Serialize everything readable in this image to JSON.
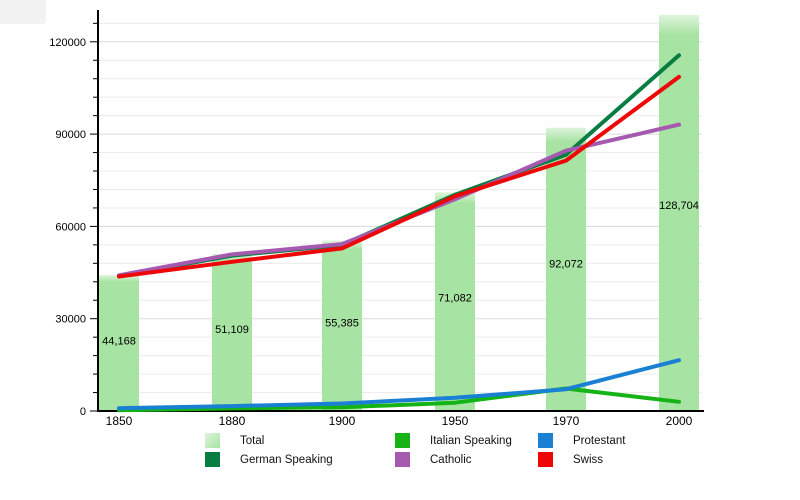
{
  "chart_data": {
    "type": "bar+line",
    "title": "",
    "categories": [
      "1850",
      "1880",
      "1900",
      "1950",
      "1970",
      "2000"
    ],
    "bar_series": {
      "name": "Total",
      "values": [
        44168,
        51109,
        55385,
        71082,
        92072,
        128704
      ],
      "labels": [
        "44,168",
        "51,109",
        "55,385",
        "71,082",
        "92,072",
        "128,704"
      ],
      "color": "#a7e3a2",
      "color_highlight": "#dff4dc"
    },
    "line_series": [
      {
        "name": "Italian Speaking",
        "color": "#15b315",
        "values": [
          250,
          850,
          1200,
          2700,
          7300,
          3000
        ]
      },
      {
        "name": "Protestant",
        "color": "#1980d4",
        "values": [
          900,
          1600,
          2450,
          4300,
          7100,
          16500
        ]
      },
      {
        "name": "German Speaking",
        "color": "#087d42",
        "values": [
          43900,
          50500,
          53950,
          70300,
          83300,
          115600
        ]
      },
      {
        "name": "Catholic",
        "color": "#a55ab0",
        "values": [
          44100,
          50900,
          54250,
          68800,
          84600,
          93100
        ]
      },
      {
        "name": "Swiss",
        "color": "#ee0707",
        "values": [
          43700,
          48500,
          52850,
          69800,
          81400,
          108600
        ]
      }
    ],
    "y_axis": {
      "min": 0,
      "max": 130300,
      "major_step": 30000,
      "minor_step": 6000,
      "major_labels": [
        "0",
        "30000",
        "60000",
        "90000",
        "120000"
      ]
    },
    "grid": true,
    "legend_position": "bottom",
    "legend_order": [
      "Total",
      "Italian Speaking",
      "Protestant",
      "German Speaking",
      "Catholic",
      "Swiss"
    ],
    "axis_color": "#000000",
    "gridline_minor_color": "#ececec",
    "gridline_major_color": "#dadada"
  }
}
